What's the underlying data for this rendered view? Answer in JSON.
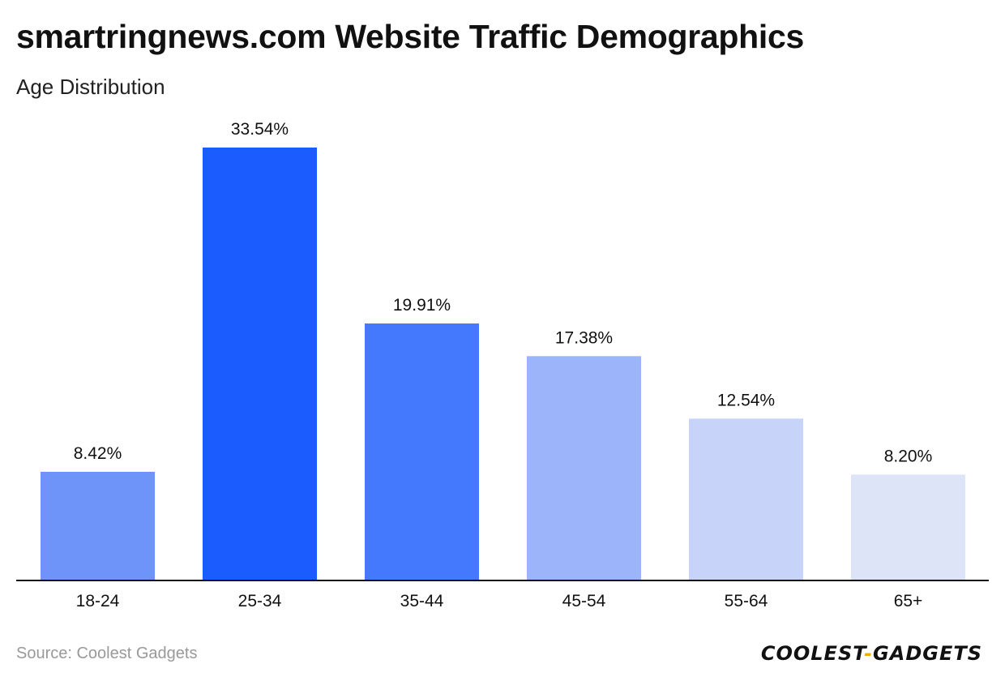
{
  "header": {
    "title": "smartringnews.com Website Traffic Demographics",
    "subtitle": "Age Distribution"
  },
  "footer": {
    "source": "Source: Coolest Gadgets",
    "logo_part1": "COOLEST",
    "logo_dash": "-",
    "logo_part2": "GADGETS"
  },
  "colors": {
    "bars": [
      "#6f94f9",
      "#1a5cff",
      "#4479fd",
      "#9bb4fa",
      "#c8d3f9",
      "#dde4f8"
    ],
    "axis": "#111111",
    "logo_accent": "#f2a900"
  },
  "chart_data": {
    "type": "bar",
    "title": "smartringnews.com Website Traffic Demographics",
    "subtitle": "Age Distribution",
    "categories": [
      "18-24",
      "25-34",
      "35-44",
      "45-54",
      "55-64",
      "65+"
    ],
    "values": [
      8.42,
      33.54,
      19.91,
      17.38,
      12.54,
      8.2
    ],
    "value_labels": [
      "8.42%",
      "33.54%",
      "19.91%",
      "17.38%",
      "12.54%",
      "8.20%"
    ],
    "xlabel": "",
    "ylabel": "",
    "ylim": [
      0,
      33.54
    ],
    "grid": false,
    "legend": "none"
  }
}
